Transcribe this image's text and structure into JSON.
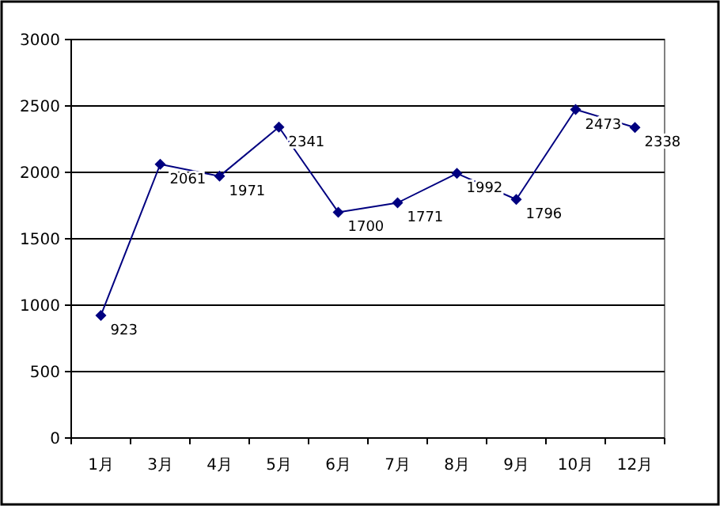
{
  "chart_data": {
    "type": "line",
    "categories": [
      "1月",
      "3月",
      "4月",
      "5月",
      "6月",
      "7月",
      "8月",
      "9月",
      "10月",
      "12月"
    ],
    "series": [
      {
        "color": "#000080",
        "values": [
          923,
          2061,
          1971,
          2341,
          1700,
          1771,
          1992,
          1796,
          2473,
          2338
        ]
      }
    ],
    "ylim": [
      0,
      3000
    ],
    "yticks": [
      0,
      500,
      1000,
      1500,
      2000,
      2500,
      3000
    ],
    "grid": "y",
    "marker": "diamond",
    "data_labels": true
  }
}
